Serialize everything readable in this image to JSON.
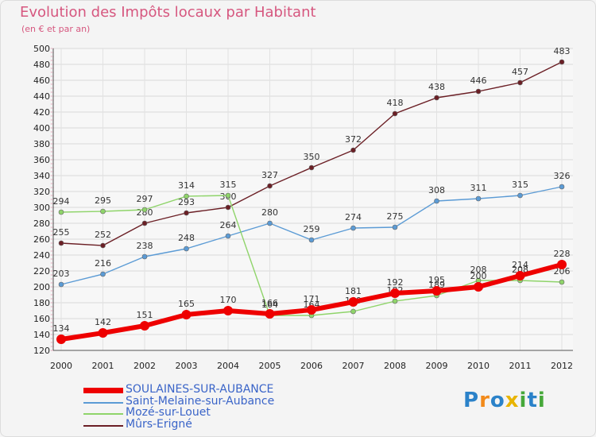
{
  "header": {
    "title": "Evolution des Impôts locaux par Habitant",
    "subtitle": "(en € et par an)"
  },
  "logo": {
    "letters": [
      "P",
      "r",
      "o",
      "x",
      "i",
      "t",
      "i"
    ],
    "colors": [
      "#2b82c9",
      "#f28a1a",
      "#2b82c9",
      "#e8b400",
      "#46a83a",
      "#2b82c9",
      "#46a83a"
    ]
  },
  "colors": {
    "title": "#d6577f",
    "grid_pink": "#d6577f",
    "legend_text": "#3a64c8"
  },
  "chart_data": {
    "type": "line",
    "title": "Evolution des Impôts locaux par Habitant",
    "subtitle": "(en € et par an)",
    "xlabel": "",
    "ylabel": "",
    "categories": [
      "2000",
      "2001",
      "2002",
      "2003",
      "2004",
      "2005",
      "2006",
      "2007",
      "2008",
      "2009",
      "2010",
      "2011",
      "2012"
    ],
    "ylim": [
      120,
      500
    ],
    "yticks": [
      "120",
      "140",
      "160",
      "180",
      "200",
      "220",
      "240",
      "260",
      "280",
      "300",
      "320",
      "340",
      "360",
      "380",
      "400",
      "420",
      "440",
      "460",
      "480",
      "500"
    ],
    "legend_position": "bottom-left",
    "series": [
      {
        "name": "Mûrs-Erigné",
        "color": "#6b1f25",
        "width": 1.4,
        "values": [
          255,
          252,
          280,
          293,
          300,
          327,
          350,
          372,
          418,
          438,
          446,
          457,
          483
        ],
        "labels": [
          "255",
          "252",
          "280",
          "293",
          "300",
          "327",
          "350",
          "372",
          "418",
          "438",
          "446",
          "457",
          "483"
        ]
      },
      {
        "name": "Saint-Melaine-sur-Aubance",
        "color": "#5b9bd5",
        "width": 1.4,
        "values": [
          203,
          216,
          238,
          248,
          264,
          280,
          259,
          274,
          275,
          308,
          311,
          315,
          326
        ],
        "labels": [
          "203",
          "216",
          "238",
          "248",
          "264",
          "280",
          "259",
          "274",
          "275",
          "308",
          "311",
          "315",
          "326"
        ]
      },
      {
        "name": "Mozé-sur-Louet",
        "color": "#8fd46a",
        "width": 1.4,
        "values": [
          294,
          295,
          297,
          314,
          315,
          164,
          164,
          169,
          182,
          189,
          208,
          208,
          206
        ],
        "labels": [
          "294",
          "295",
          "297",
          "314",
          "315",
          "164",
          "164",
          "169",
          "182",
          "189",
          "208",
          "208",
          "206"
        ]
      },
      {
        "name": "SOULAINES-SUR-AUBANCE",
        "color": "#ee0000",
        "width": 6,
        "values": [
          134,
          142,
          151,
          165,
          170,
          166,
          171,
          181,
          192,
          195,
          200,
          214,
          228
        ],
        "labels": [
          "134",
          "142",
          "151",
          "165",
          "170",
          "166",
          "171",
          "181",
          "192",
          "195",
          "200",
          "214",
          "228"
        ]
      }
    ]
  },
  "legend": {
    "items": [
      {
        "label": "SOULAINES-SUR-AUBANCE",
        "color": "#ee0000",
        "thickness": 7
      },
      {
        "label": "Saint-Melaine-sur-Aubance",
        "color": "#5b9bd5",
        "thickness": 2
      },
      {
        "label": "Mozé-sur-Louet",
        "color": "#8fd46a",
        "thickness": 2
      },
      {
        "label": "Mûrs-Erigné",
        "color": "#6b1f25",
        "thickness": 2
      }
    ]
  }
}
